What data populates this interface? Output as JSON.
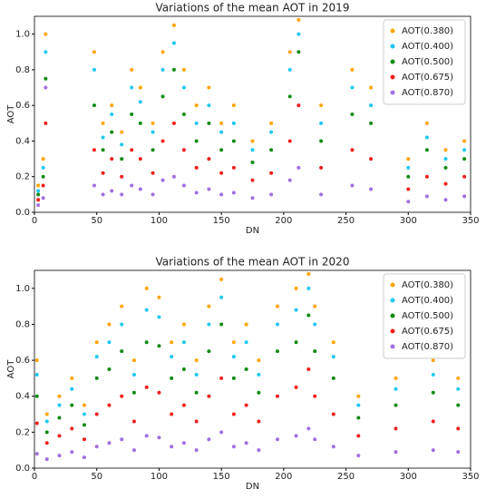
{
  "chart_data": [
    {
      "type": "scatter",
      "title": "Variations of the mean AOT in 2019",
      "x_label": "DN",
      "y_label": "AOT",
      "x": [
        3,
        7,
        9,
        48,
        55,
        62,
        70,
        78,
        85,
        95,
        103,
        112,
        120,
        130,
        140,
        150,
        160,
        175,
        190,
        205,
        212,
        230,
        255,
        270,
        300,
        315,
        330,
        345
      ],
      "series": [
        {
          "name": "AOT(0.380)",
          "color": "#ffa500",
          "values": [
            0.15,
            0.3,
            1.0,
            0.9,
            0.5,
            0.6,
            0.45,
            0.8,
            0.7,
            0.5,
            0.9,
            1.05,
            0.8,
            0.6,
            0.7,
            0.5,
            0.6,
            0.4,
            0.5,
            0.9,
            1.08,
            0.6,
            0.8,
            0.7,
            0.3,
            0.5,
            0.35,
            0.4
          ]
        },
        {
          "name": "AOT(0.400)",
          "color": "#1ec8f0",
          "values": [
            0.12,
            0.25,
            0.9,
            0.8,
            0.42,
            0.55,
            0.38,
            0.7,
            0.62,
            0.45,
            0.8,
            0.95,
            0.7,
            0.5,
            0.6,
            0.45,
            0.5,
            0.35,
            0.45,
            0.8,
            1.0,
            0.5,
            0.7,
            0.6,
            0.25,
            0.42,
            0.3,
            0.35
          ]
        },
        {
          "name": "AOT(0.500)",
          "color": "#138a13",
          "values": [
            0.1,
            0.2,
            0.75,
            0.6,
            0.35,
            0.45,
            0.3,
            0.55,
            0.5,
            0.35,
            0.65,
            0.8,
            0.55,
            0.4,
            0.5,
            0.35,
            0.4,
            0.28,
            0.35,
            0.65,
            0.9,
            0.4,
            0.55,
            0.5,
            0.2,
            0.35,
            0.25,
            0.3
          ]
        },
        {
          "name": "AOT(0.675)",
          "color": "#f01e1e",
          "values": [
            0.07,
            0.15,
            0.5,
            0.35,
            0.22,
            0.3,
            0.2,
            0.35,
            0.3,
            0.22,
            0.4,
            0.5,
            0.35,
            0.25,
            0.3,
            0.22,
            0.25,
            0.18,
            0.22,
            0.4,
            0.6,
            0.25,
            0.35,
            0.3,
            0.13,
            0.2,
            0.16,
            0.2
          ]
        },
        {
          "name": "AOT(0.870)",
          "color": "#a070e0",
          "values": [
            0.04,
            0.08,
            0.7,
            0.15,
            0.1,
            0.12,
            0.1,
            0.15,
            0.13,
            0.1,
            0.18,
            0.2,
            0.15,
            0.11,
            0.13,
            0.1,
            0.11,
            0.08,
            0.1,
            0.18,
            0.25,
            0.1,
            0.15,
            0.13,
            0.06,
            0.09,
            0.07,
            0.09
          ]
        }
      ],
      "xlim": [
        0,
        350
      ],
      "xticks": [
        0,
        50,
        100,
        150,
        200,
        250,
        300,
        350
      ],
      "ylim": [
        0,
        1.1
      ],
      "yticks": [
        {
          "value": 0,
          "label": "0.0"
        },
        {
          "value": 0.2,
          "label": "0.2"
        },
        {
          "value": 0.4,
          "label": "0.4"
        },
        {
          "value": 0.6,
          "label": "0.6"
        },
        {
          "value": 0.8,
          "label": "0.8"
        },
        {
          "value": 1,
          "label": "1.0"
        }
      ],
      "legend": "upper right"
    },
    {
      "type": "scatter",
      "title": "Variations of the mean AOT in 2020",
      "x_label": "DN",
      "y_label": "AOT",
      "x": [
        2,
        10,
        20,
        30,
        40,
        50,
        60,
        70,
        80,
        90,
        100,
        110,
        120,
        130,
        140,
        150,
        160,
        170,
        180,
        195,
        210,
        220,
        225,
        240,
        260,
        290,
        320,
        340
      ],
      "series": [
        {
          "name": "AOT(0.380)",
          "color": "#ffa500",
          "values": [
            0.6,
            0.3,
            0.4,
            0.5,
            0.35,
            0.7,
            0.8,
            0.9,
            0.6,
            1.0,
            0.95,
            0.7,
            0.8,
            0.6,
            0.9,
            1.05,
            0.7,
            0.8,
            0.6,
            0.9,
            1.0,
            1.08,
            0.9,
            0.7,
            0.4,
            0.5,
            0.6,
            0.5
          ]
        },
        {
          "name": "AOT(0.400)",
          "color": "#1ec8f0",
          "values": [
            0.52,
            0.26,
            0.35,
            0.44,
            0.3,
            0.62,
            0.7,
            0.8,
            0.52,
            0.88,
            0.84,
            0.62,
            0.7,
            0.52,
            0.8,
            0.95,
            0.62,
            0.7,
            0.52,
            0.8,
            0.88,
            1.0,
            0.8,
            0.62,
            0.35,
            0.44,
            0.52,
            0.44
          ]
        },
        {
          "name": "AOT(0.500)",
          "color": "#138a13",
          "values": [
            0.4,
            0.2,
            0.28,
            0.35,
            0.24,
            0.5,
            0.55,
            0.65,
            0.42,
            0.7,
            0.68,
            0.5,
            0.55,
            0.42,
            0.65,
            0.8,
            0.5,
            0.55,
            0.42,
            0.65,
            0.7,
            0.85,
            0.65,
            0.5,
            0.28,
            0.35,
            0.42,
            0.35
          ]
        },
        {
          "name": "AOT(0.675)",
          "color": "#f01e1e",
          "values": [
            0.25,
            0.14,
            0.18,
            0.22,
            0.16,
            0.3,
            0.35,
            0.4,
            0.26,
            0.45,
            0.42,
            0.3,
            0.35,
            0.26,
            0.4,
            0.5,
            0.3,
            0.35,
            0.26,
            0.4,
            0.45,
            0.55,
            0.4,
            0.3,
            0.18,
            0.22,
            0.26,
            0.22
          ]
        },
        {
          "name": "AOT(0.870)",
          "color": "#a070e0",
          "values": [
            0.08,
            0.05,
            0.07,
            0.09,
            0.06,
            0.12,
            0.14,
            0.16,
            0.1,
            0.18,
            0.17,
            0.12,
            0.14,
            0.1,
            0.16,
            0.2,
            0.12,
            0.14,
            0.1,
            0.16,
            0.18,
            0.22,
            0.16,
            0.12,
            0.07,
            0.09,
            0.1,
            0.09
          ]
        }
      ],
      "xlim": [
        0,
        350
      ],
      "xticks": [
        0,
        50,
        100,
        150,
        200,
        250,
        300,
        350
      ],
      "ylim": [
        0,
        1.1
      ],
      "yticks": [
        {
          "value": 0,
          "label": "0.0"
        },
        {
          "value": 0.2,
          "label": "0.2"
        },
        {
          "value": 0.4,
          "label": "0.4"
        },
        {
          "value": 0.6,
          "label": "0.6"
        },
        {
          "value": 0.8,
          "label": "0.8"
        },
        {
          "value": 1,
          "label": "1.0"
        }
      ],
      "legend": "upper right"
    }
  ]
}
